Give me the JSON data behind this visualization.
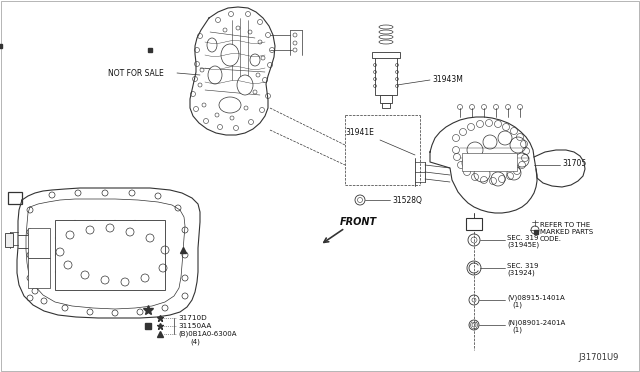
{
  "bg_color": "#ffffff",
  "line_color": "#333333",
  "text_color": "#111111",
  "title_diagram_id": "J31701U9",
  "fig_width": 6.4,
  "fig_height": 3.72,
  "dpi": 100,
  "labels": {
    "not_for_sale": "NOT FOR SALE",
    "front": "FRONT",
    "part_31528Q": "31528Q",
    "part_31943M": "31943M",
    "part_31941E": "31941E",
    "part_31705": "31705",
    "part_31710D": "31710D",
    "part_31150AA": "31150AA",
    "part_0B1A0": "(B)0B1A0-6300A",
    "part_0B1A0_qty": "(4)",
    "sec_319_1": "SEC. 319",
    "sec_319_1b": "(31945E)",
    "sec_319_2": "SEC. 319",
    "sec_319_2b": "(31924)",
    "part_08915": "(V)08915-1401A",
    "part_08915_qty": "(1)",
    "part_08901": "(N)08901-2401A",
    "part_08901_qty": "(1)",
    "refer_text1": "REFER TO THE",
    "refer_text2": "MARKED PARTS",
    "refer_text3": "CODE.",
    "box_A": "A",
    "box_A2": "A"
  }
}
